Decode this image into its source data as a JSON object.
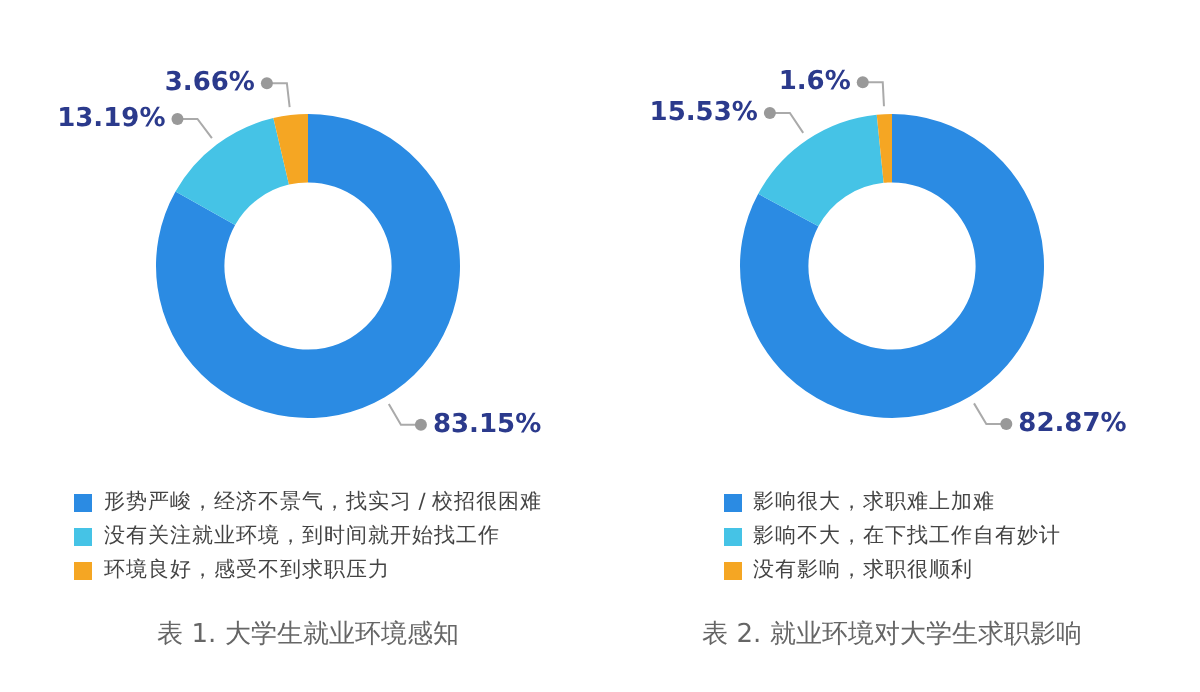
{
  "chart_data": [
    {
      "type": "donut",
      "title": "表 1. 大学生就业环境感知",
      "categories": [
        "形势严峻，经济不景气，找实习 / 校招很困难",
        "没有关注就业环境，到时间就开始找工作",
        "环境良好，感受不到求职压力"
      ],
      "values": [
        83.15,
        13.19,
        3.66
      ],
      "colors": [
        "#2b8be3",
        "#45c3e6",
        "#f5a623"
      ],
      "value_labels": [
        "83.15%",
        "13.19%",
        "3.66%"
      ],
      "legend": "bottom"
    },
    {
      "type": "donut",
      "title": "表 2. 就业环境对大学生求职影响",
      "categories": [
        "影响很大，求职难上加难",
        "影响不大，在下找工作自有妙计",
        "没有影响，求职很顺利"
      ],
      "values": [
        82.87,
        15.53,
        1.6
      ],
      "colors": [
        "#2b8be3",
        "#45c3e6",
        "#f5a623"
      ],
      "value_labels": [
        "82.87%",
        "15.53%",
        "1.6%"
      ],
      "legend": "bottom"
    }
  ]
}
